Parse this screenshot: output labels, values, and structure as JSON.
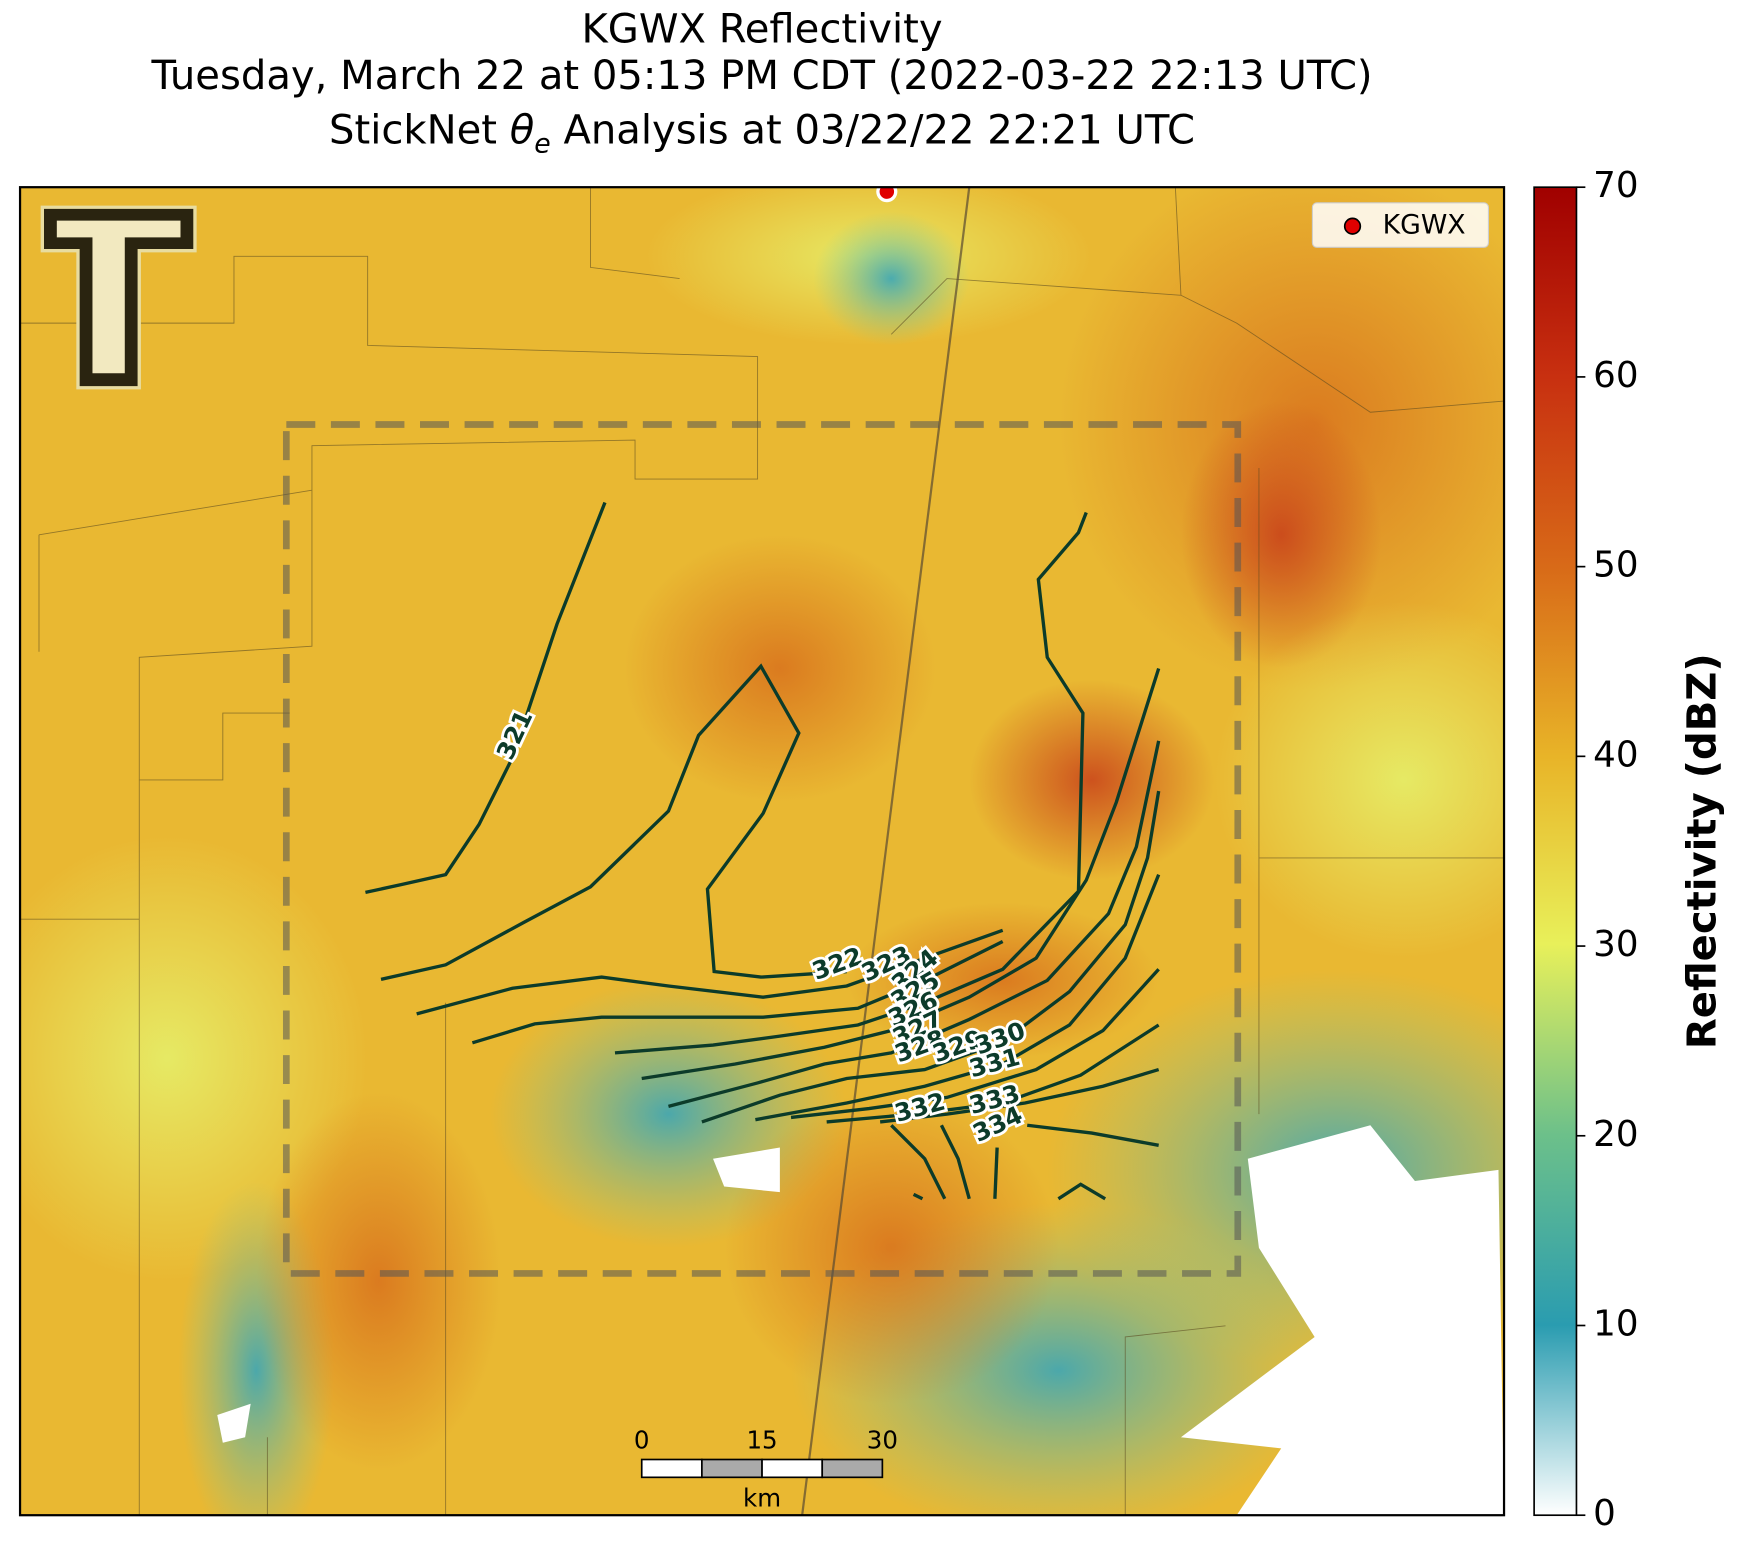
{
  "title_line1": "KGWX Reflectivity",
  "title_line2": "Tuesday, March 22 at 05:13 PM CDT (2022-03-22 22:13 UTC)",
  "title_line3": {
    "prefix": "StickNet",
    "symbol": "θ",
    "subscript": "e",
    "suffix": "Analysis at 03/22/22 22:21 UTC"
  },
  "legend": {
    "label": "KGWX"
  },
  "colorbar": {
    "label": "Reflectivity (dBZ)",
    "lim": [
      0,
      70
    ],
    "ticks": [
      0,
      10,
      20,
      30,
      40,
      50,
      60,
      70
    ]
  },
  "scale_bar": {
    "ticks": [
      0,
      15,
      30
    ],
    "unit": "km"
  },
  "contour_labels": [
    321,
    322,
    323,
    324,
    325,
    326,
    327,
    328,
    329,
    330,
    331,
    332,
    333,
    334
  ]
}
